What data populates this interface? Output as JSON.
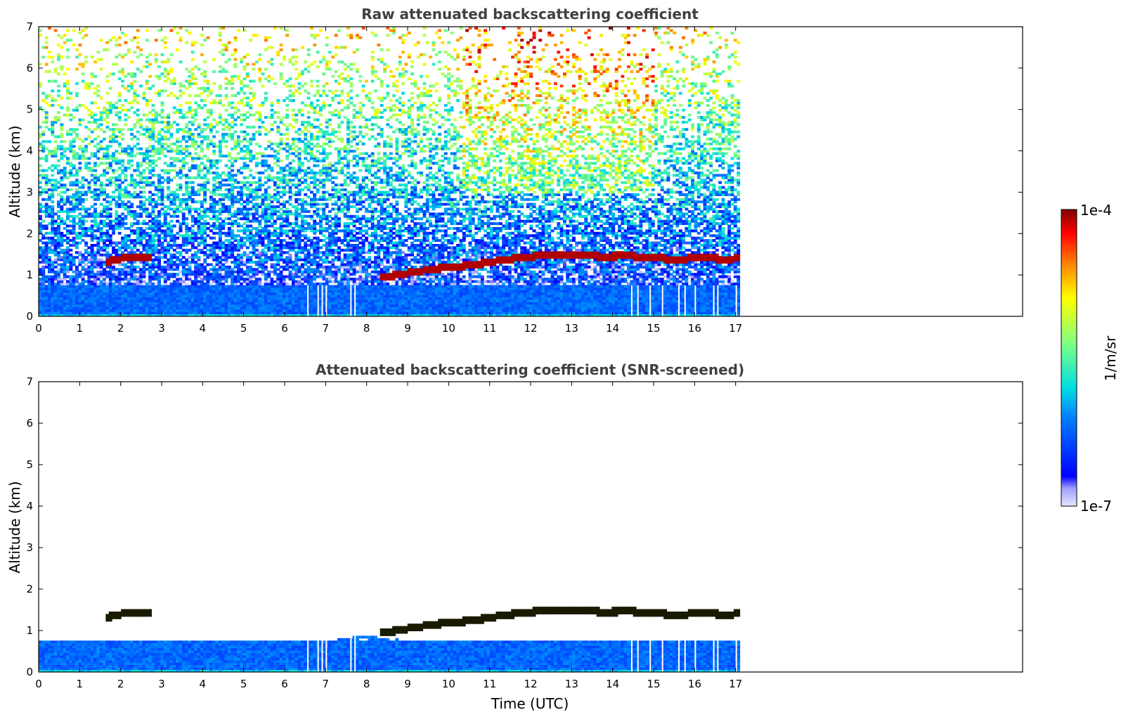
{
  "chart_data": [
    {
      "type": "heatmap",
      "title": "Raw attenuated backscattering coefficient",
      "xlabel": "",
      "ylabel": "Altitude (km)",
      "xlim": [
        0,
        24
      ],
      "ylim": [
        0,
        7
      ],
      "x_ticks": [
        "0",
        "1",
        "2",
        "3",
        "4",
        "5",
        "6",
        "7",
        "8",
        "9",
        "10",
        "11",
        "12",
        "13",
        "14",
        "15",
        "16",
        "17"
      ],
      "y_ticks": [
        "0",
        "1",
        "2",
        "3",
        "4",
        "5",
        "6",
        "7"
      ],
      "data_extent_x": [
        0,
        17.1
      ],
      "colorbar": {
        "min_label": "1e-7",
        "max_label": "1e-4",
        "label": "1/m/sr",
        "scale": "log"
      },
      "cloud_layer": [
        {
          "x": 1.65,
          "y": 1.32
        },
        {
          "x": 2.0,
          "y": 1.4
        },
        {
          "x": 2.4,
          "y": 1.45
        },
        {
          "x": 2.75,
          "y": 1.45
        },
        {
          "x": 8.4,
          "y": 0.95
        },
        {
          "x": 9.0,
          "y": 1.05
        },
        {
          "x": 9.6,
          "y": 1.15
        },
        {
          "x": 10.2,
          "y": 1.2
        },
        {
          "x": 10.8,
          "y": 1.28
        },
        {
          "x": 11.4,
          "y": 1.38
        },
        {
          "x": 12.0,
          "y": 1.45
        },
        {
          "x": 12.6,
          "y": 1.5
        },
        {
          "x": 13.2,
          "y": 1.48
        },
        {
          "x": 13.8,
          "y": 1.45
        },
        {
          "x": 14.4,
          "y": 1.47
        },
        {
          "x": 15.0,
          "y": 1.42
        },
        {
          "x": 15.6,
          "y": 1.38
        },
        {
          "x": 16.2,
          "y": 1.43
        },
        {
          "x": 16.8,
          "y": 1.38
        },
        {
          "x": 17.1,
          "y": 1.42
        }
      ]
    },
    {
      "type": "heatmap",
      "title": "Attenuated backscattering coefficient (SNR-screened)",
      "xlabel": "Time (UTC)",
      "ylabel": "Altitude (km)",
      "xlim": [
        0,
        24
      ],
      "ylim": [
        0,
        7
      ],
      "x_ticks": [
        "0",
        "1",
        "2",
        "3",
        "4",
        "5",
        "6",
        "7",
        "8",
        "9",
        "10",
        "11",
        "12",
        "13",
        "14",
        "15",
        "16",
        "17"
      ],
      "y_ticks": [
        "0",
        "1",
        "2",
        "3",
        "4",
        "5",
        "6",
        "7"
      ],
      "data_extent_x": [
        0,
        17.1
      ],
      "boundary_layer_top": [
        {
          "x": 0,
          "y": 0.75
        },
        {
          "x": 7.0,
          "y": 0.75
        },
        {
          "x": 8.0,
          "y": 0.9
        },
        {
          "x": 9.0,
          "y": 0.75
        },
        {
          "x": 10.0,
          "y": 0.7
        },
        {
          "x": 11.0,
          "y": 0.65
        },
        {
          "x": 12.0,
          "y": 0.65
        },
        {
          "x": 13.0,
          "y": 0.6
        },
        {
          "x": 14.0,
          "y": 0.55
        },
        {
          "x": 15.0,
          "y": 0.72
        },
        {
          "x": 16.0,
          "y": 0.75
        },
        {
          "x": 17.1,
          "y": 0.78
        }
      ]
    }
  ]
}
